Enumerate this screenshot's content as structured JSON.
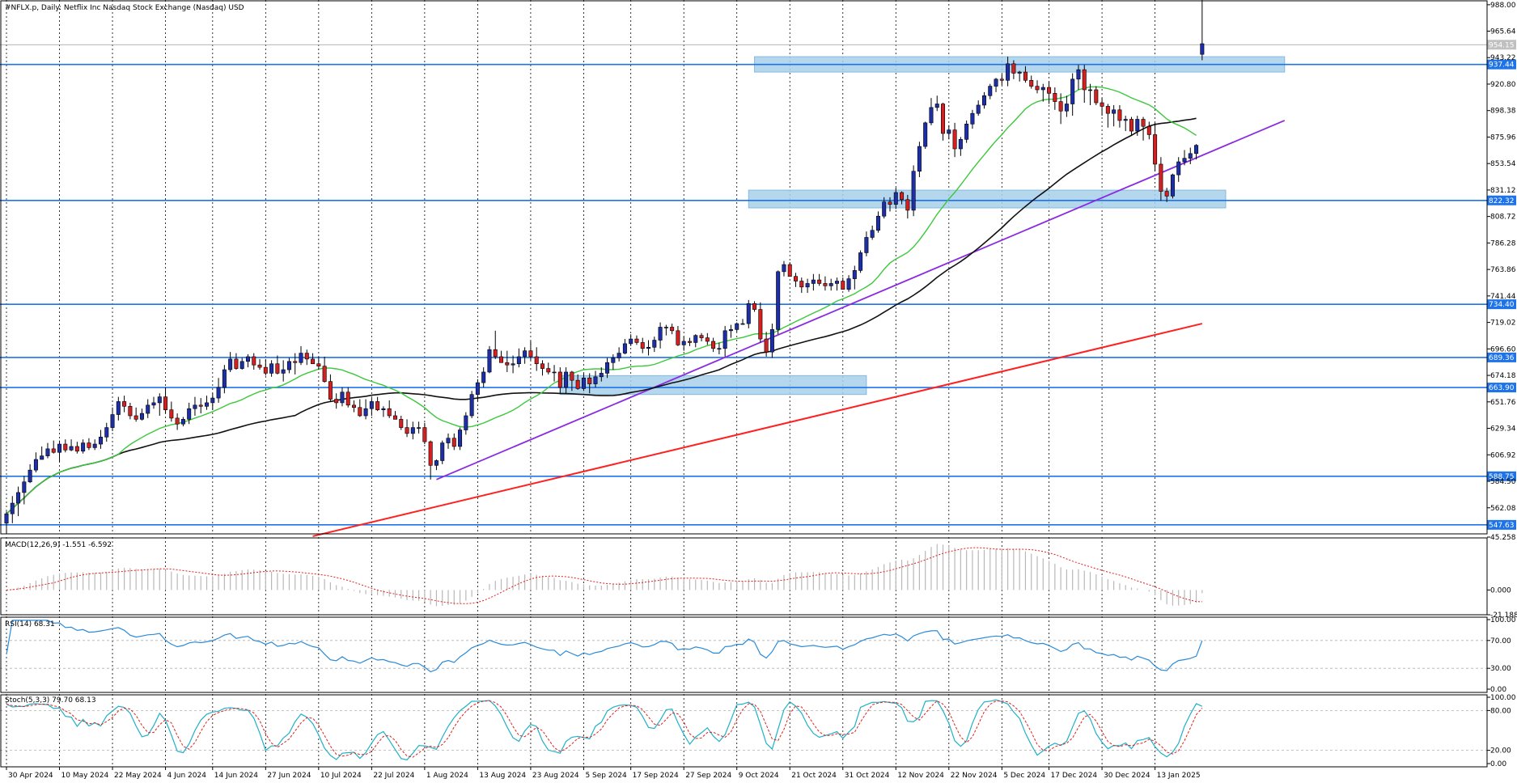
{
  "chart_data": [
    {
      "type": "candlestick",
      "title": "#NFLX.p, Daily:  Netflix Inc Nasdaq Stock Exchange (Nasdaq) USD",
      "x_tick_labels": [
        "30 Apr 2024",
        "10 May 2024",
        "22 May 2024",
        "4 Jun 2024",
        "14 Jun 2024",
        "27 Jun 2024",
        "10 Jul 2024",
        "22 Jul 2024",
        "1 Aug 2024",
        "13 Aug 2024",
        "23 Aug 2024",
        "5 Sep 2024",
        "17 Sep 2024",
        "27 Sep 2024",
        "9 Oct 2024",
        "21 Oct 2024",
        "31 Oct 2024",
        "12 Nov 2024",
        "22 Nov 2024",
        "5 Dec 2024",
        "17 Dec 2024",
        "30 Dec 2024",
        "13 Jan 2025"
      ],
      "y_tick_labels": [
        "988.00",
        "965.64",
        "943.22",
        "920.80",
        "898.38",
        "875.96",
        "853.54",
        "831.12",
        "808.72",
        "786.28",
        "763.86",
        "741.44",
        "719.02",
        "696.60",
        "674.18",
        "651.76",
        "629.34",
        "606.92",
        "584.50",
        "562.08"
      ],
      "ylim": [
        540,
        992
      ],
      "horizontal_levels": [
        {
          "value": 937.44,
          "label": "937.44",
          "color": "#1e73e8"
        },
        {
          "value": 822.32,
          "label": "822.32",
          "color": "#1e73e8"
        },
        {
          "value": 734.4,
          "label": "734.40",
          "color": "#1e73e8"
        },
        {
          "value": 689.36,
          "label": "689.36",
          "color": "#1e73e8"
        },
        {
          "value": 663.9,
          "label": "663.90",
          "color": "#1e73e8"
        },
        {
          "value": 588.75,
          "label": "588.75",
          "color": "#1e73e8"
        },
        {
          "value": 547.63,
          "label": "547.63",
          "color": "#1e73e8"
        }
      ],
      "current_price": {
        "value": 954.15,
        "label": "954.15"
      },
      "zones": [
        {
          "from_index": 127,
          "to_index": 217,
          "y_low": 931,
          "y_high": 944
        },
        {
          "from_index": 126,
          "to_index": 207,
          "y_low": 816,
          "y_high": 831
        },
        {
          "from_index": 94,
          "to_index": 146,
          "y_low": 658,
          "y_high": 674
        }
      ],
      "trendline": {
        "from": {
          "index": 73,
          "value": 586
        },
        "to": {
          "index": 217,
          "value": 890
        },
        "color": "#8a2be2"
      },
      "ma_200": {
        "from": {
          "index": 52,
          "value": 538
        },
        "to": {
          "index": 203,
          "value": 718
        },
        "color": "#ff2020"
      },
      "colors": {
        "up": "#1c2fa8",
        "down": "#d42020",
        "ma_fast": "#3cc83c",
        "ma_slow": "#111111"
      },
      "series": [
        {
          "name": "price",
          "o": [
            549,
            557,
            566,
            575,
            584,
            594,
            603,
            606,
            612,
            609,
            616,
            611,
            614,
            610,
            617,
            613,
            616,
            622,
            630,
            641,
            652,
            648,
            640,
            637,
            642,
            649,
            651,
            656,
            645,
            638,
            633,
            637,
            646,
            649,
            648,
            651,
            655,
            664,
            679,
            688,
            680,
            686,
            690,
            683,
            681,
            676,
            684,
            676,
            679,
            686,
            685,
            693,
            688,
            684,
            682,
            669,
            654,
            651,
            660,
            649,
            647,
            640,
            646,
            652,
            645,
            646,
            640,
            637,
            630,
            625,
            630,
            630,
            618,
            598,
            602,
            617,
            621,
            614,
            628,
            640,
            658,
            668,
            677,
            696,
            690,
            685,
            683,
            684,
            690,
            695,
            690,
            684,
            680,
            677,
            677,
            664,
            677,
            670,
            663,
            672,
            667,
            673,
            676,
            685,
            689,
            693,
            701,
            705,
            702,
            697,
            698,
            704,
            715,
            715,
            712,
            700,
            703,
            702,
            708,
            706,
            703,
            697,
            697,
            712,
            713,
            718,
            718,
            735,
            730,
            705,
            694,
            713,
            762,
            768,
            758,
            754,
            749,
            752,
            755,
            752,
            750,
            752,
            754,
            747,
            756,
            763,
            778,
            791,
            797,
            809,
            821,
            819,
            829,
            823,
            814,
            847,
            868,
            888,
            901,
            904,
            879,
            882,
            866,
            874,
            887,
            896,
            903,
            911,
            919,
            925,
            924,
            938,
            930,
            931,
            924,
            919,
            916,
            918,
            913,
            906,
            898,
            904,
            925,
            933,
            916,
            916,
            905,
            902,
            896,
            899,
            890,
            891,
            881,
            891,
            885,
            878,
            853,
            830,
            826,
            844,
            855,
            858,
            862,
            946
          ],
          "h": [
            559,
            572,
            580,
            589,
            599,
            609,
            614,
            617,
            619,
            619,
            620,
            620,
            618,
            620,
            621,
            620,
            628,
            634,
            647,
            656,
            657,
            651,
            647,
            646,
            654,
            656,
            659,
            664,
            652,
            642,
            639,
            651,
            656,
            655,
            657,
            659,
            672,
            683,
            694,
            693,
            689,
            692,
            693,
            688,
            688,
            687,
            691,
            687,
            689,
            693,
            699,
            696,
            693,
            690,
            690,
            675,
            659,
            664,
            664,
            653,
            654,
            654,
            655,
            656,
            648,
            653,
            644,
            640,
            637,
            635,
            635,
            634,
            619,
            603,
            619,
            625,
            625,
            630,
            643,
            661,
            671,
            681,
            699,
            712,
            695,
            695,
            691,
            697,
            698,
            703,
            698,
            687,
            685,
            683,
            681,
            681,
            678,
            675,
            676,
            676,
            678,
            681,
            689,
            692,
            698,
            705,
            709,
            708,
            706,
            704,
            707,
            719,
            717,
            718,
            716,
            707,
            706,
            709,
            710,
            710,
            706,
            702,
            716,
            717,
            719,
            722,
            738,
            737,
            736,
            711,
            718,
            763,
            771,
            770,
            761,
            757,
            756,
            760,
            760,
            758,
            756,
            757,
            757,
            759,
            767,
            780,
            796,
            801,
            813,
            825,
            825,
            833,
            830,
            827,
            852,
            872,
            889,
            909,
            911,
            905,
            886,
            888,
            876,
            890,
            899,
            907,
            914,
            921,
            926,
            929,
            944,
            941,
            932,
            936,
            928,
            924,
            921,
            923,
            918,
            913,
            911,
            930,
            937,
            937,
            921,
            919,
            909,
            904,
            903,
            903,
            894,
            893,
            894,
            893,
            889,
            888,
            859,
            833,
            845,
            859,
            865,
            867,
            870,
            1000
          ],
          "l": [
            540,
            549,
            555,
            565,
            583,
            592,
            603,
            604,
            608,
            601,
            609,
            610,
            608,
            608,
            611,
            611,
            612,
            618,
            627,
            636,
            643,
            637,
            635,
            636,
            638,
            646,
            640,
            642,
            635,
            628,
            631,
            633,
            640,
            642,
            645,
            645,
            651,
            659,
            677,
            679,
            679,
            681,
            679,
            679,
            674,
            673,
            675,
            669,
            676,
            675,
            683,
            683,
            684,
            679,
            668,
            652,
            646,
            648,
            647,
            643,
            639,
            637,
            640,
            644,
            639,
            638,
            637,
            628,
            622,
            620,
            625,
            616,
            586,
            594,
            599,
            612,
            611,
            611,
            624,
            638,
            652,
            664,
            676,
            688,
            685,
            677,
            676,
            681,
            684,
            687,
            678,
            674,
            675,
            669,
            659,
            659,
            661,
            662,
            661,
            659,
            664,
            669,
            672,
            679,
            686,
            692,
            699,
            700,
            693,
            691,
            694,
            697,
            708,
            709,
            699,
            695,
            699,
            698,
            703,
            700,
            694,
            692,
            690,
            706,
            711,
            717,
            714,
            728,
            702,
            690,
            689,
            709,
            758,
            762,
            749,
            744,
            744,
            746,
            750,
            746,
            746,
            746,
            750,
            745,
            747,
            761,
            775,
            789,
            795,
            807,
            813,
            815,
            819,
            807,
            809,
            842,
            866,
            886,
            898,
            873,
            874,
            859,
            860,
            871,
            883,
            894,
            900,
            908,
            914,
            920,
            919,
            925,
            923,
            922,
            917,
            913,
            906,
            904,
            899,
            887,
            893,
            894,
            916,
            905,
            903,
            903,
            894,
            884,
            885,
            884,
            881,
            877,
            877,
            873,
            874,
            847,
            822,
            821,
            824,
            838,
            852,
            853,
            857,
            941
          ],
          "c": [
            557,
            566,
            575,
            584,
            594,
            603,
            606,
            612,
            609,
            616,
            611,
            614,
            610,
            617,
            613,
            616,
            622,
            630,
            641,
            652,
            648,
            640,
            637,
            642,
            649,
            651,
            656,
            645,
            638,
            633,
            637,
            646,
            649,
            648,
            651,
            655,
            664,
            679,
            688,
            680,
            686,
            690,
            683,
            681,
            676,
            684,
            676,
            679,
            686,
            685,
            693,
            688,
            684,
            682,
            669,
            654,
            651,
            660,
            649,
            647,
            640,
            646,
            652,
            645,
            646,
            640,
            637,
            630,
            625,
            630,
            630,
            618,
            598,
            602,
            617,
            621,
            614,
            628,
            640,
            658,
            668,
            677,
            696,
            690,
            685,
            683,
            684,
            690,
            695,
            690,
            684,
            680,
            677,
            677,
            664,
            677,
            670,
            663,
            672,
            667,
            673,
            676,
            685,
            689,
            693,
            701,
            705,
            702,
            697,
            698,
            704,
            715,
            715,
            712,
            700,
            703,
            702,
            708,
            706,
            703,
            697,
            697,
            712,
            713,
            718,
            718,
            735,
            730,
            705,
            694,
            713,
            762,
            768,
            758,
            754,
            749,
            752,
            755,
            752,
            750,
            752,
            754,
            747,
            756,
            763,
            778,
            791,
            797,
            809,
            821,
            819,
            829,
            823,
            814,
            847,
            868,
            888,
            901,
            904,
            879,
            882,
            866,
            874,
            887,
            896,
            903,
            911,
            919,
            925,
            924,
            938,
            930,
            931,
            924,
            919,
            916,
            918,
            913,
            906,
            898,
            904,
            925,
            933,
            916,
            916,
            905,
            902,
            896,
            899,
            890,
            891,
            881,
            891,
            885,
            878,
            853,
            830,
            826,
            844,
            855,
            858,
            862,
            869,
            955
          ]
        }
      ]
    },
    {
      "type": "histogram",
      "title": "MACD(12,26,9) -1.551 -6.592",
      "y_tick_labels": [
        "45.258",
        "0.000",
        "-21.188"
      ],
      "ylim": [
        -21.188,
        45.258
      ]
    },
    {
      "type": "line",
      "title": "RSI(14) 68.31",
      "y_tick_labels": [
        "100.00",
        "70.00",
        "30.00",
        "0.00"
      ],
      "ylim": [
        0,
        100
      ],
      "levels": [
        70,
        30
      ]
    },
    {
      "type": "line",
      "title": "Stoch(5,3,3) 79.70 68.13",
      "y_tick_labels": [
        "100.00",
        "80.00",
        "20.00",
        "0.00"
      ],
      "ylim": [
        0,
        100
      ],
      "levels": [
        80,
        20
      ]
    }
  ]
}
